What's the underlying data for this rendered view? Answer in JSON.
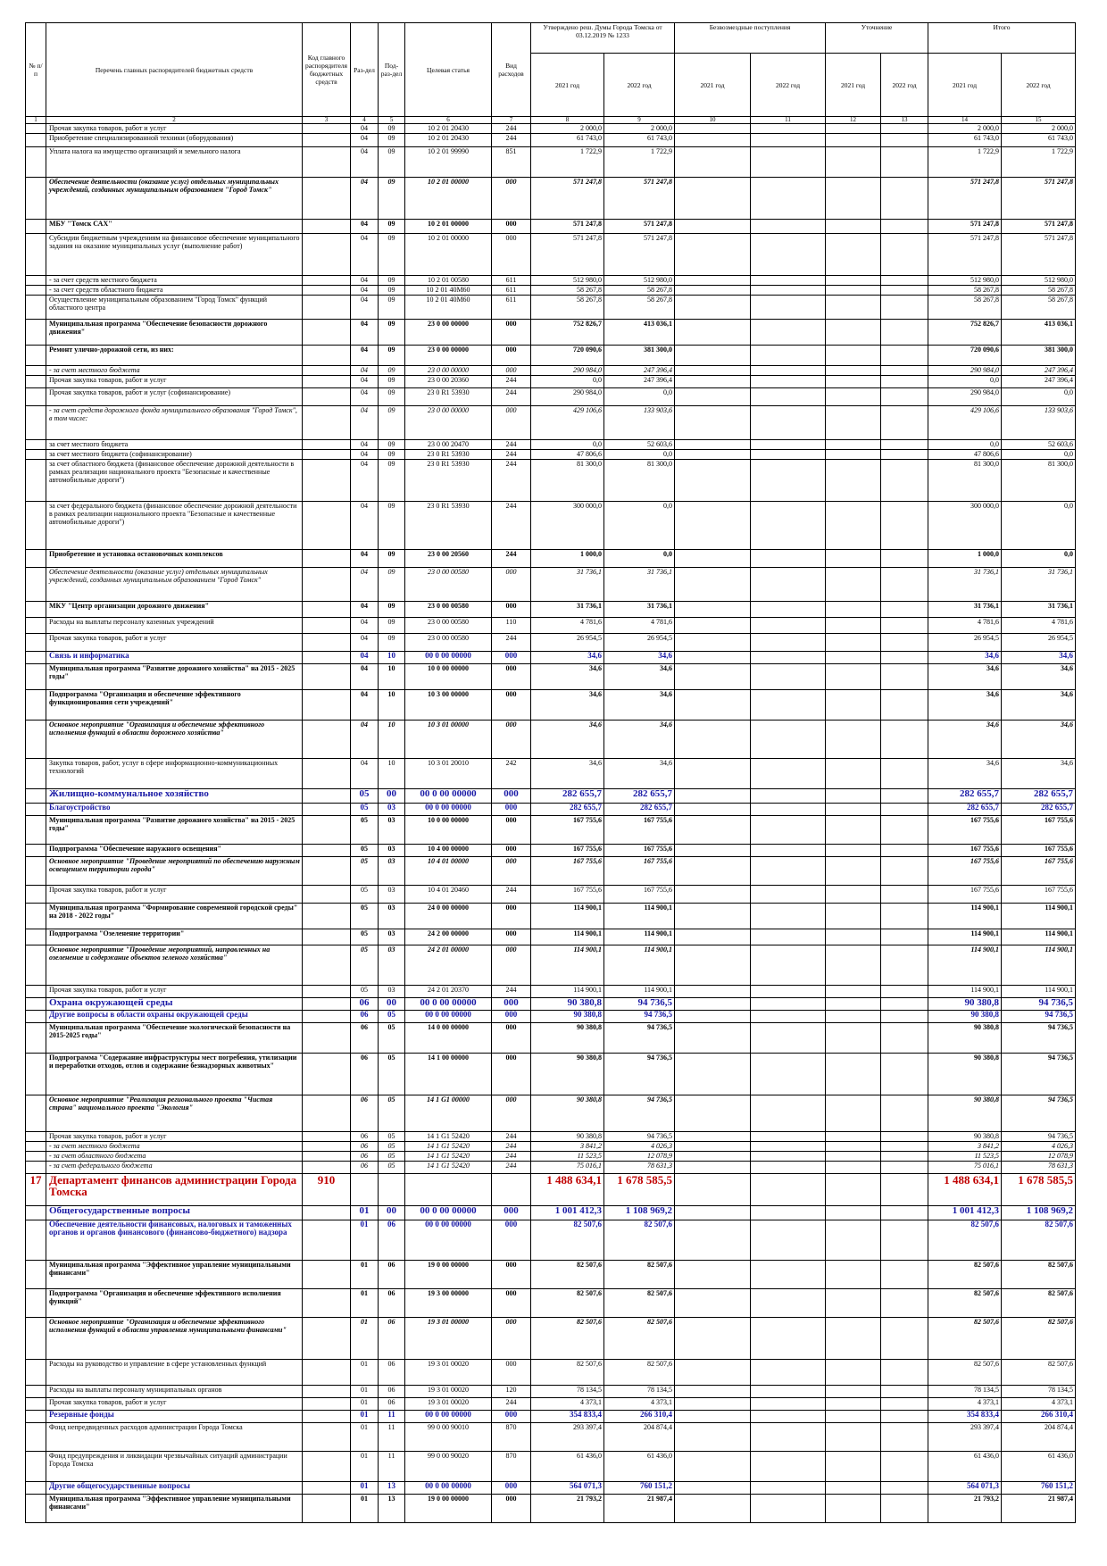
{
  "table": {
    "header": {
      "num": "№ п/п",
      "name": "Перечень главных распорядителей бюджетных средств",
      "code": "Код главного распорядителя бюджетных средств",
      "sec": "Раз-дел",
      "sub": "Под-раз-дел",
      "art": "Целевая статья",
      "kind": "Вид расходов",
      "groups": [
        "Утверждено реш. Думы Города Томска от 03.12.2019 № 1233",
        "Безвозмездные поступления",
        "Уточнение",
        "Итого"
      ],
      "years": [
        "2021 год",
        "2022 год",
        "2021 год",
        "2022 год",
        "2021 год",
        "2022 год",
        "2021 год",
        "2022 год"
      ],
      "col_numbers": [
        1,
        2,
        3,
        4,
        5,
        6,
        7,
        8,
        9,
        10,
        11,
        12,
        13,
        14,
        15
      ]
    },
    "rows": [
      {
        "name": "Прочая закупка товаров, работ и услуг",
        "sec": "04",
        "sub": "09",
        "art": "10 2 01 20430",
        "kind": "244",
        "a21": "2 000,0",
        "a22": "2 000,0",
        "t21": "2 000,0",
        "t22": "2 000,0"
      },
      {
        "name": "Приобретение специализированной техники (оборудования)",
        "sec": "04",
        "sub": "09",
        "art": "10 2 01 20430",
        "kind": "244",
        "a21": "61 743,0",
        "a22": "61 743,0",
        "t21": "61 743,0",
        "t22": "61 743,0"
      },
      {
        "name": "Уплата налога на имущество организаций и земельного налога",
        "sec": "04",
        "sub": "09",
        "art": "10 2 01 99990",
        "kind": "851",
        "a21": "1 722,9",
        "a22": "1 722,9",
        "t21": "1 722,9",
        "t22": "1 722,9"
      },
      {
        "name": "Обеспечение деятельности (оказание услуг) отдельных муниципальных учреждений, созданных муниципальным образованием \"Город Томск\"",
        "sec": "04",
        "sub": "09",
        "art": "10 2 01 00000",
        "kind": "000",
        "a21": "571 247,8",
        "a22": "571 247,8",
        "t21": "571 247,8",
        "t22": "571 247,8"
      },
      {
        "name": "МБУ \"Томск САХ\"",
        "sec": "04",
        "sub": "09",
        "art": "10 2 01 00000",
        "kind": "000",
        "a21": "571 247,8",
        "a22": "571 247,8",
        "t21": "571 247,8",
        "t22": "571 247,8"
      },
      {
        "name": "Субсидии бюджетным учреждениям на финансовое обеспечение муниципального задания на оказание муниципальных услуг (выполнение работ)",
        "sec": "04",
        "sub": "09",
        "art": "10 2 01 00000",
        "kind": "000",
        "a21": "571 247,8",
        "a22": "571 247,8",
        "t21": "571 247,8",
        "t22": "571 247,8"
      },
      {
        "name": "- за счет средств местного бюджета",
        "sec": "04",
        "sub": "09",
        "art": "10 2 01 00580",
        "kind": "611",
        "a21": "512 980,0",
        "a22": "512 980,0",
        "t21": "512 980,0",
        "t22": "512 980,0"
      },
      {
        "name": "- за счет средств областного бюджета",
        "sec": "04",
        "sub": "09",
        "art": "10 2 01 40М60",
        "kind": "611",
        "a21": "58 267,8",
        "a22": "58 267,8",
        "t21": "58 267,8",
        "t22": "58 267,8"
      },
      {
        "name": "Осуществление муниципальным образованием \"Город Томск\" функций областного центра",
        "sec": "04",
        "sub": "09",
        "art": "10 2 01 40М60",
        "kind": "611",
        "a21": "58 267,8",
        "a22": "58 267,8",
        "t21": "58 267,8",
        "t22": "58 267,8"
      },
      {
        "name": "Муниципальная программа \"Обеспечение безопасности дорожного движения\"",
        "sec": "04",
        "sub": "09",
        "art": "23 0 00 00000",
        "kind": "000",
        "a21": "752 826,7",
        "a22": "413 036,1",
        "t21": "752 826,7",
        "t22": "413 036,1"
      },
      {
        "name": "Ремонт улично-дорожной сети, из них:",
        "sec": "04",
        "sub": "09",
        "art": "23 0 00 00000",
        "kind": "000",
        "a21": "720 090,6",
        "a22": "381 300,0",
        "t21": "720 090,6",
        "t22": "381 300,0"
      },
      {
        "name": "- за счет местного бюджета",
        "sec": "04",
        "sub": "09",
        "art": "23 0 00 00000",
        "kind": "000",
        "a21": "290 984,0",
        "a22": "247 396,4",
        "t21": "290 984,0",
        "t22": "247 396,4"
      },
      {
        "name": "Прочая закупка товаров, работ и услуг",
        "sec": "04",
        "sub": "09",
        "art": "23 0 00 20360",
        "kind": "244",
        "a21": "0,0",
        "a22": "247 396,4",
        "t21": "0,0",
        "t22": "247 396,4"
      },
      {
        "name": "Прочая закупка товаров, работ и услуг (софинансирование)",
        "sec": "04",
        "sub": "09",
        "art": "23 0 R1 53930",
        "kind": "244",
        "a21": "290 984,0",
        "a22": "0,0",
        "t21": "290 984,0",
        "t22": "0,0"
      },
      {
        "name": "- за счет средств дорожного фонда муниципального образования \"Город Томск\", в том числе:",
        "sec": "04",
        "sub": "09",
        "art": "23 0 00 00000",
        "kind": "000",
        "a21": "429 106,6",
        "a22": "133 903,6",
        "t21": "429 106,6",
        "t22": "133 903,6"
      },
      {
        "name": "за счет местного бюджета",
        "sec": "04",
        "sub": "09",
        "art": "23 0 00 20470",
        "kind": "244",
        "a21": "0,0",
        "a22": "52 603,6",
        "t21": "0,0",
        "t22": "52 603,6"
      },
      {
        "name": "за счет местного бюджета (софинансирование)",
        "sec": "04",
        "sub": "09",
        "art": "23 0 R1 53930",
        "kind": "244",
        "a21": "47 806,6",
        "a22": "0,0",
        "t21": "47 806,6",
        "t22": "0,0"
      },
      {
        "name": "за счет областного бюджета (финансовое обеспечение дорожной деятельности в рамках реализации национального проекта \"Безопасные и качественные автомобильные дороги\")",
        "sec": "04",
        "sub": "09",
        "art": "23 0 R1 53930",
        "kind": "244",
        "a21": "81 300,0",
        "a22": "81 300,0",
        "t21": "81 300,0",
        "t22": "81 300,0"
      },
      {
        "name": "за счет федерального бюджета (финансовое обеспечение дорожной деятельности в рамках реализации национального проекта \"Безопасные и качественные автомобильные дороги\")",
        "sec": "04",
        "sub": "09",
        "art": "23 0 R1 53930",
        "kind": "244",
        "a21": "300 000,0",
        "a22": "0,0",
        "t21": "300 000,0",
        "t22": "0,0"
      },
      {
        "name": "Приобретение и установка остановочных комплексов",
        "sec": "04",
        "sub": "09",
        "art": "23 0 00 20560",
        "kind": "244",
        "a21": "1 000,0",
        "a22": "0,0",
        "t21": "1 000,0",
        "t22": "0,0"
      },
      {
        "name": "Обеспечение деятельности (оказание услуг) отдельных муниципальных учреждений, созданных муниципальным образованием \"Город Томск\"",
        "sec": "04",
        "sub": "09",
        "art": "23 0 00 00580",
        "kind": "000",
        "a21": "31 736,1",
        "a22": "31 736,1",
        "t21": "31 736,1",
        "t22": "31 736,1"
      },
      {
        "name": "МКУ \"Центр организации дорожного движения\"",
        "sec": "04",
        "sub": "09",
        "art": "23 0 00 00580",
        "kind": "000",
        "a21": "31 736,1",
        "a22": "31 736,1",
        "t21": "31 736,1",
        "t22": "31 736,1"
      },
      {
        "name": "Расходы на выплаты персоналу казенных учреждений",
        "sec": "04",
        "sub": "09",
        "art": "23 0 00 00580",
        "kind": "110",
        "a21": "4 781,6",
        "a22": "4 781,6",
        "t21": "4 781,6",
        "t22": "4 781,6"
      },
      {
        "name": "Прочая закупка товаров, работ и услуг",
        "sec": "04",
        "sub": "09",
        "art": "23 0 00 00580",
        "kind": "244",
        "a21": "26 954,5",
        "a22": "26 954,5",
        "t21": "26 954,5",
        "t22": "26 954,5"
      },
      {
        "name": "Связь и информатика",
        "sec": "04",
        "sub": "10",
        "art": "00 0 00 00000",
        "kind": "000",
        "a21": "34,6",
        "a22": "34,6",
        "t21": "34,6",
        "t22": "34,6"
      },
      {
        "name": "Муниципальная программа \"Развитие дорожного хозяйства\" на 2015 - 2025 годы\"",
        "sec": "04",
        "sub": "10",
        "art": "10 0 00 00000",
        "kind": "000",
        "a21": "34,6",
        "a22": "34,6",
        "t21": "34,6",
        "t22": "34,6"
      },
      {
        "name": "Подпрограмма \"Организация и обеспечение эффективного функционирования сети учреждений\"",
        "sec": "04",
        "sub": "10",
        "art": "10 3 00 00000",
        "kind": "000",
        "a21": "34,6",
        "a22": "34,6",
        "t21": "34,6",
        "t22": "34,6"
      },
      {
        "name": "Основное мероприятие \"Организация и обеспечение эффективного исполнения функций в области дорожного хозяйства\"",
        "sec": "04",
        "sub": "10",
        "art": "10 3 01 00000",
        "kind": "000",
        "a21": "34,6",
        "a22": "34,6",
        "t21": "34,6",
        "t22": "34,6"
      },
      {
        "name": "Закупка товаров, работ, услуг в сфере информационно-коммуникационных технологий",
        "sec": "04",
        "sub": "10",
        "art": "10 3 01 20010",
        "kind": "242",
        "a21": "34,6",
        "a22": "34,6",
        "t21": "34,6",
        "t22": "34,6"
      },
      {
        "name": "Жилищно-коммунальное хозяйство",
        "sec": "05",
        "sub": "00",
        "art": "00 0 00 00000",
        "kind": "000",
        "a21": "282 655,7",
        "a22": "282 655,7",
        "t21": "282 655,7",
        "t22": "282 655,7"
      },
      {
        "name": "Благоустройство",
        "sec": "05",
        "sub": "03",
        "art": "00 0 00 00000",
        "kind": "000",
        "a21": "282 655,7",
        "a22": "282 655,7",
        "t21": "282 655,7",
        "t22": "282 655,7"
      },
      {
        "name": "Муниципальная программа \"Развитие дорожного хозяйства\" на 2015 - 2025 годы\"",
        "sec": "05",
        "sub": "03",
        "art": "10 0 00 00000",
        "kind": "000",
        "a21": "167 755,6",
        "a22": "167 755,6",
        "t21": "167 755,6",
        "t22": "167 755,6"
      },
      {
        "name": "Подпрограмма \"Обеспечение наружного освещения\"",
        "sec": "05",
        "sub": "03",
        "art": "10 4 00 00000",
        "kind": "000",
        "a21": "167 755,6",
        "a22": "167 755,6",
        "t21": "167 755,6",
        "t22": "167 755,6"
      },
      {
        "name": "Основное мероприятие \"Проведение мероприятий по обеспечению наружным освещением территории города\"",
        "sec": "05",
        "sub": "03",
        "art": "10 4 01 00000",
        "kind": "000",
        "a21": "167 755,6",
        "a22": "167 755,6",
        "t21": "167 755,6",
        "t22": "167 755,6"
      },
      {
        "name": "Прочая закупка товаров, работ и услуг",
        "sec": "05",
        "sub": "03",
        "art": "10 4 01 20460",
        "kind": "244",
        "a21": "167 755,6",
        "a22": "167 755,6",
        "t21": "167 755,6",
        "t22": "167 755,6"
      },
      {
        "name": "Муниципальная программа \"Формирование современной городской среды\" на 2018 - 2022 годы\"",
        "sec": "05",
        "sub": "03",
        "art": "24 0 00 00000",
        "kind": "000",
        "a21": "114 900,1",
        "a22": "114 900,1",
        "t21": "114 900,1",
        "t22": "114 900,1"
      },
      {
        "name": "Подпрограмма \"Озеленение территории\"",
        "sec": "05",
        "sub": "03",
        "art": "24 2 00 00000",
        "kind": "000",
        "a21": "114 900,1",
        "a22": "114 900,1",
        "t21": "114 900,1",
        "t22": "114 900,1"
      },
      {
        "name": "Основное мероприятие \"Проведение мероприятий, направленных на озеленение и содержание объектов зеленого хозяйства\"",
        "sec": "05",
        "sub": "03",
        "art": "24 2 01 00000",
        "kind": "000",
        "a21": "114 900,1",
        "a22": "114 900,1",
        "t21": "114 900,1",
        "t22": "114 900,1"
      },
      {
        "name": "Прочая закупка товаров, работ и услуг",
        "sec": "05",
        "sub": "03",
        "art": "24 2 01 20370",
        "kind": "244",
        "a21": "114 900,1",
        "a22": "114 900,1",
        "t21": "114 900,1",
        "t22": "114 900,1"
      },
      {
        "name": "Охрана окружающей среды",
        "sec": "06",
        "sub": "00",
        "art": "00 0 00 00000",
        "kind": "000",
        "a21": "90 380,8",
        "a22": "94 736,5",
        "t21": "90 380,8",
        "t22": "94 736,5"
      },
      {
        "name": "Другие вопросы в области охраны окружающей среды",
        "sec": "06",
        "sub": "05",
        "art": "00 0 00 00000",
        "kind": "000",
        "a21": "90 380,8",
        "a22": "94 736,5",
        "t21": "90 380,8",
        "t22": "94 736,5"
      },
      {
        "name": "Муниципальная программа \"Обеспечение экологической безопасности на 2015-2025 годы\"",
        "sec": "06",
        "sub": "05",
        "art": "14 0 00 00000",
        "kind": "000",
        "a21": "90 380,8",
        "a22": "94 736,5",
        "t21": "90 380,8",
        "t22": "94 736,5"
      },
      {
        "name": "Подпрограмма \"Содержание инфраструктуры мест погребения, утилизации и переработки отходов, отлов и содержание безнадзорных животных\"",
        "sec": "06",
        "sub": "05",
        "art": "14 1 00 00000",
        "kind": "000",
        "a21": "90 380,8",
        "a22": "94 736,5",
        "t21": "90 380,8",
        "t22": "94 736,5"
      },
      {
        "name": "Основное мероприятие \"Реализация регионального проекта \"Чистая страна\" национального проекта \"Экология\"",
        "sec": "06",
        "sub": "05",
        "art": "14 1 G1 00000",
        "kind": "000",
        "a21": "90 380,8",
        "a22": "94 736,5",
        "t21": "90 380,8",
        "t22": "94 736,5"
      },
      {
        "name": "Прочая закупка товаров, работ и услуг",
        "sec": "06",
        "sub": "05",
        "art": "14 1 G1 52420",
        "kind": "244",
        "a21": "90 380,8",
        "a22": "94 736,5",
        "t21": "90 380,8",
        "t22": "94 736,5"
      },
      {
        "name": "- за счет местного бюджета",
        "sec": "06",
        "sub": "05",
        "art": "14 1 G1 52420",
        "kind": "244",
        "a21": "3 841,2",
        "a22": "4 026,3",
        "t21": "3 841,2",
        "t22": "4 026,3"
      },
      {
        "name": "- за счет областного бюджета",
        "sec": "06",
        "sub": "05",
        "art": "14 1 G1 52420",
        "kind": "244",
        "a21": "11 523,5",
        "a22": "12 078,9",
        "t21": "11 523,5",
        "t22": "12 078,9"
      },
      {
        "name": "- за счет федерального бюджета",
        "sec": "06",
        "sub": "05",
        "art": "14 1 G1 52420",
        "kind": "244",
        "a21": "75 016,1",
        "a22": "78 631,3",
        "t21": "75 016,1",
        "t22": "78 631,3"
      },
      {
        "num": "17",
        "name": "Департамент финансов администрации Города Томска",
        "code": "910",
        "a21": "1 488 634,1",
        "a22": "1 678 585,5",
        "t21": "1 488 634,1",
        "t22": "1 678 585,5"
      },
      {
        "name": "Общегосударственные вопросы",
        "sec": "01",
        "sub": "00",
        "art": "00 0 00 00000",
        "kind": "000",
        "a21": "1 001 412,3",
        "a22": "1 108 969,2",
        "t21": "1 001 412,3",
        "t22": "1 108 969,2"
      },
      {
        "name": "Обеспечение деятельности финансовых, налоговых и таможенных органов и органов финансового (финансово-бюджетного) надзора",
        "sec": "01",
        "sub": "06",
        "art": "00 0 00 00000",
        "kind": "000",
        "a21": "82 507,6",
        "a22": "82 507,6",
        "t21": "82 507,6",
        "t22": "82 507,6"
      },
      {
        "name": "Муниципальная программа \"Эффективное управление муниципальными финансами\"",
        "sec": "01",
        "sub": "06",
        "art": "19 0 00 00000",
        "kind": "000",
        "a21": "82 507,6",
        "a22": "82 507,6",
        "t21": "82 507,6",
        "t22": "82 507,6"
      },
      {
        "name": "Подпрограмма \"Организация и обеспечение эффективного исполнения функций\"",
        "sec": "01",
        "sub": "06",
        "art": "19 3 00 00000",
        "kind": "000",
        "a21": "82 507,6",
        "a22": "82 507,6",
        "t21": "82 507,6",
        "t22": "82 507,6"
      },
      {
        "name": "Основное мероприятие \"Организация и обеспечение эффективного исполнения функций в области управления муниципальными финансами\"",
        "sec": "01",
        "sub": "06",
        "art": "19 3 01 00000",
        "kind": "000",
        "a21": "82 507,6",
        "a22": "82 507,6",
        "t21": "82 507,6",
        "t22": "82 507,6"
      },
      {
        "name": "Расходы на руководство и управление в сфере установленных функций",
        "sec": "01",
        "sub": "06",
        "art": "19 3 01 00020",
        "kind": "000",
        "a21": "82 507,6",
        "a22": "82 507,6",
        "t21": "82 507,6",
        "t22": "82 507,6"
      },
      {
        "name": "Расходы на выплаты персоналу муниципальных органов",
        "sec": "01",
        "sub": "06",
        "art": "19 3 01 00020",
        "kind": "120",
        "a21": "78 134,5",
        "a22": "78 134,5",
        "t21": "78 134,5",
        "t22": "78 134,5"
      },
      {
        "name": "Прочая закупка товаров, работ и услуг",
        "sec": "01",
        "sub": "06",
        "art": "19 3 01 00020",
        "kind": "244",
        "a21": "4 373,1",
        "a22": "4 373,1",
        "t21": "4 373,1",
        "t22": "4 373,1"
      },
      {
        "name": "Резервные фонды",
        "sec": "01",
        "sub": "11",
        "art": "00 0 00 00000",
        "kind": "000",
        "a21": "354 833,4",
        "a22": "266 310,4",
        "t21": "354 833,4",
        "t22": "266 310,4"
      },
      {
        "name": "Фонд непредвиденных расходов администрации Города Томска",
        "sec": "01",
        "sub": "11",
        "art": "99 0 00 90010",
        "kind": "870",
        "a21": "293 397,4",
        "a22": "204 874,4",
        "t21": "293 397,4",
        "t22": "204 874,4"
      },
      {
        "name": "Фонд предупреждения и ликвидации чрезвычайных ситуаций администрации Города Томска",
        "sec": "01",
        "sub": "11",
        "art": "99 0 00 90020",
        "kind": "870",
        "a21": "61 436,0",
        "a22": "61 436,0",
        "t21": "61 436,0",
        "t22": "61 436,0"
      },
      {
        "name": "Другие общегосударственные вопросы",
        "sec": "01",
        "sub": "13",
        "art": "00 0 00 00000",
        "kind": "000",
        "a21": "564 071,3",
        "a22": "760 151,2",
        "t21": "564 071,3",
        "t22": "760 151,2"
      },
      {
        "name": "Муниципальная программа \"Эффективное управление муниципальными финансами\"",
        "sec": "01",
        "sub": "13",
        "art": "19 0 00 00000",
        "kind": "000",
        "a21": "21 793,2",
        "a22": "21 987,4",
        "t21": "21 793,2",
        "t22": "21 987,4"
      }
    ]
  }
}
